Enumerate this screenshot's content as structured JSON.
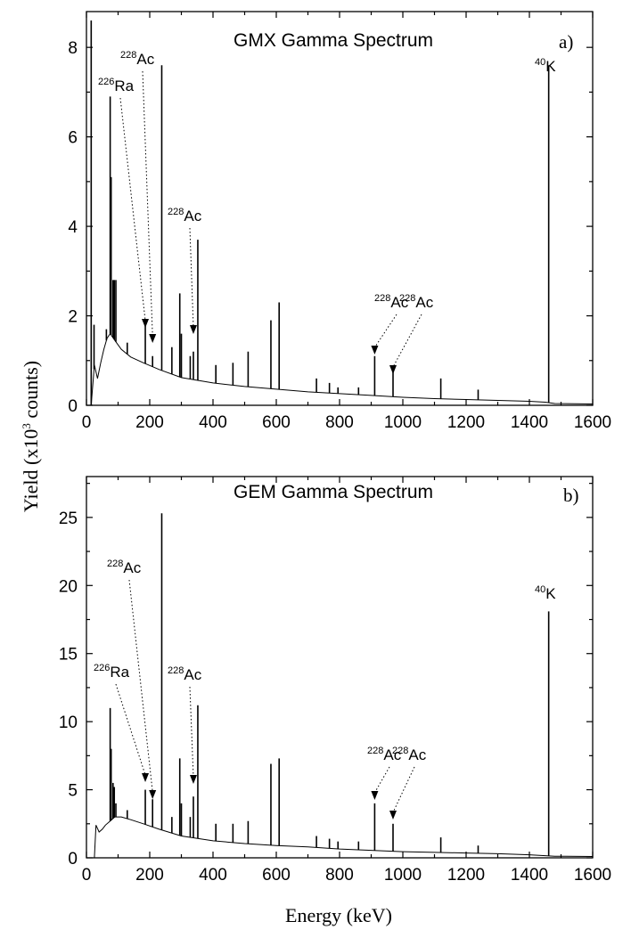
{
  "figure": {
    "ylabel_main": "Yield (x10",
    "ylabel_exp": "3",
    "ylabel_tail": " counts)",
    "xlabel": "Energy (keV)"
  },
  "chart_data": [
    {
      "type": "line",
      "title": "GMX Gamma Spectrum",
      "panel_label": "a)",
      "xlabel": "",
      "ylabel": "Yield (x10^3 counts)",
      "xlim": [
        0,
        1600
      ],
      "ylim": [
        0,
        8.8
      ],
      "xticks": [
        0,
        200,
        400,
        600,
        800,
        1000,
        1200,
        1400,
        1600
      ],
      "xtick_labels": [
        "0",
        "200",
        "400",
        "600",
        "800",
        "1000",
        "1200",
        "1400",
        "1600"
      ],
      "yticks": [
        0,
        2,
        4,
        6,
        8
      ],
      "ytick_labels": [
        "0",
        "2",
        "4",
        "6",
        "8"
      ],
      "continuum": {
        "energy": [
          15,
          25,
          35,
          45,
          55,
          65,
          75,
          90,
          110,
          140,
          180,
          230,
          300,
          400,
          500,
          600,
          700,
          800,
          900,
          1000,
          1100,
          1200,
          1300,
          1400,
          1450,
          1480,
          1600
        ],
        "yield": [
          0,
          0.9,
          0.6,
          0.95,
          1.25,
          1.5,
          1.6,
          1.45,
          1.25,
          1.08,
          0.95,
          0.8,
          0.62,
          0.5,
          0.42,
          0.36,
          0.3,
          0.26,
          0.22,
          0.18,
          0.15,
          0.13,
          0.11,
          0.09,
          0.07,
          0.04,
          0.03
        ]
      },
      "peaks": {
        "energy": [
          15,
          24,
          63,
          75,
          78,
          84,
          88,
          93,
          129,
          186,
          209,
          238,
          270,
          295,
          300,
          328,
          338,
          352,
          409,
          463,
          511,
          583,
          609,
          727,
          768,
          795,
          860,
          911,
          969,
          1120,
          1238,
          1461
        ],
        "yield": [
          8.6,
          1.8,
          1.7,
          6.9,
          5.1,
          2.8,
          2.8,
          2.8,
          1.4,
          1.9,
          1.1,
          7.6,
          1.3,
          2.5,
          1.6,
          1.1,
          1.2,
          3.7,
          0.9,
          0.95,
          1.2,
          1.9,
          2.3,
          0.6,
          0.5,
          0.4,
          0.4,
          1.1,
          0.75,
          0.6,
          0.35,
          7.6
        ]
      },
      "annotations": [
        {
          "isotope": "Ra",
          "mass": "226",
          "energy": 186
        },
        {
          "isotope": "Ac",
          "mass": "228",
          "energy": 209
        },
        {
          "isotope": "Ac",
          "mass": "228",
          "energy": 338
        },
        {
          "isotope": "Ac",
          "mass": "228",
          "energy": 911
        },
        {
          "isotope": "Ac",
          "mass": "228",
          "energy": 969
        },
        {
          "isotope": "K",
          "mass": "40",
          "energy": 1461
        }
      ]
    },
    {
      "type": "line",
      "title": "GEM Gamma Spectrum",
      "panel_label": "b)",
      "xlabel": "Energy (keV)",
      "ylabel": "Yield (x10^3 counts)",
      "xlim": [
        0,
        1600
      ],
      "ylim": [
        0,
        28
      ],
      "xticks": [
        0,
        200,
        400,
        600,
        800,
        1000,
        1200,
        1400,
        1600
      ],
      "xtick_labels": [
        "0",
        "200",
        "400",
        "600",
        "800",
        "1000",
        "1200",
        "1400",
        "1600"
      ],
      "yticks": [
        0,
        5,
        10,
        15,
        20,
        25
      ],
      "ytick_labels": [
        "0",
        "5",
        "10",
        "15",
        "20",
        "25"
      ],
      "continuum": {
        "energy": [
          25,
          30,
          40,
          50,
          60,
          75,
          90,
          110,
          140,
          180,
          230,
          300,
          400,
          500,
          600,
          700,
          800,
          900,
          1000,
          1100,
          1200,
          1300,
          1400,
          1450,
          1480,
          1600
        ],
        "yield": [
          0,
          2.4,
          1.9,
          2.1,
          2.4,
          2.7,
          3.0,
          3.0,
          2.8,
          2.5,
          2.1,
          1.6,
          1.25,
          1.05,
          0.9,
          0.8,
          0.65,
          0.55,
          0.45,
          0.4,
          0.35,
          0.3,
          0.22,
          0.16,
          0.12,
          0.1
        ]
      },
      "peaks": {
        "energy": [
          75,
          78,
          84,
          88,
          93,
          129,
          186,
          209,
          238,
          270,
          295,
          300,
          328,
          338,
          352,
          409,
          463,
          511,
          583,
          609,
          727,
          768,
          795,
          860,
          911,
          969,
          1120,
          1238,
          1461
        ],
        "yield": [
          11,
          8,
          5.5,
          5.2,
          4.0,
          3.5,
          5.0,
          4.3,
          25.3,
          3.0,
          7.3,
          4.0,
          3.0,
          4.5,
          11.2,
          2.5,
          2.5,
          2.7,
          6.9,
          7.3,
          1.6,
          1.4,
          1.2,
          1.2,
          4.0,
          2.5,
          1.5,
          0.9,
          18.1
        ]
      },
      "annotations": [
        {
          "isotope": "Ra",
          "mass": "226",
          "energy": 186
        },
        {
          "isotope": "Ac",
          "mass": "228",
          "energy": 209
        },
        {
          "isotope": "Ac",
          "mass": "228",
          "energy": 338
        },
        {
          "isotope": "Ac",
          "mass": "228",
          "energy": 911
        },
        {
          "isotope": "Ac",
          "mass": "228",
          "energy": 969
        },
        {
          "isotope": "K",
          "mass": "40",
          "energy": 1461
        }
      ]
    }
  ]
}
